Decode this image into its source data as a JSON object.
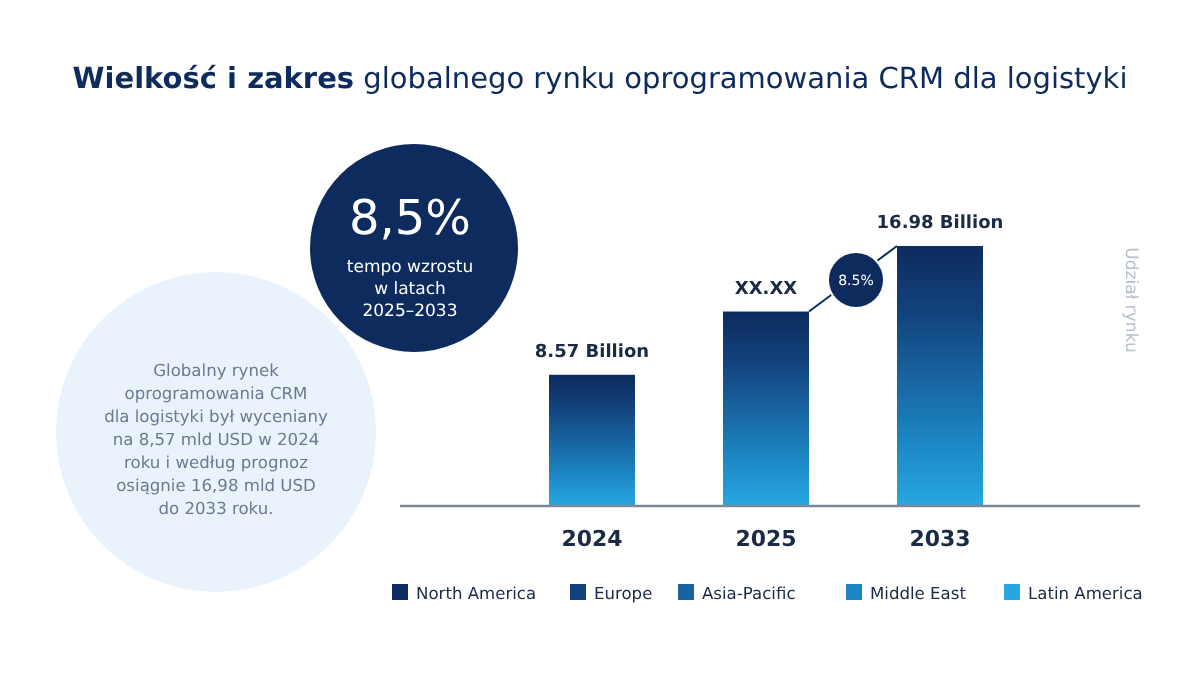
{
  "chart_data": {
    "type": "bar",
    "title": "Wielkość i zakres globalnego rynku oprogramowania CRM dla logistyki",
    "categories": [
      "2024",
      "2025",
      "2033"
    ],
    "series": [
      {
        "color": "#0d2b5d",
        "values": [
          8.57,
          12.7,
          16.98
        ],
        "value_labels": [
          "8.57 Billion",
          "XX.XX",
          "16.98 Billion"
        ]
      },
      {
        "name": "North America",
        "color": "#0d2b5d",
        "values": [
          null,
          null,
          null
        ]
      },
      {
        "name": "Europe",
        "color": "#12427c",
        "values": [
          null,
          null,
          null
        ]
      },
      {
        "name": "Asia-Pacific",
        "color": "#1863a0",
        "values": [
          null,
          null,
          null
        ]
      },
      {
        "name": "Middle East",
        "color": "#1c86c3",
        "values": [
          null,
          null,
          null
        ]
      },
      {
        "name": "Latin America",
        "color": "#27a7e1",
        "values": [
          null,
          null,
          null
        ]
      }
    ],
    "legend": "bottom",
    "annotations": [
      "8,5%",
      "tempo wzrostu\nw latach\n2025–2033",
      "Globalny rynek\noprogramowania CRM\ndla logistyki był wyceniany\nna 8,57 mld USD w 2024\nroku i według prognoz\nosiągnie 16,98 mld USD\ndo 2033 roku.",
      "8.5%",
      "Udział rynku"
    ]
  }
}
